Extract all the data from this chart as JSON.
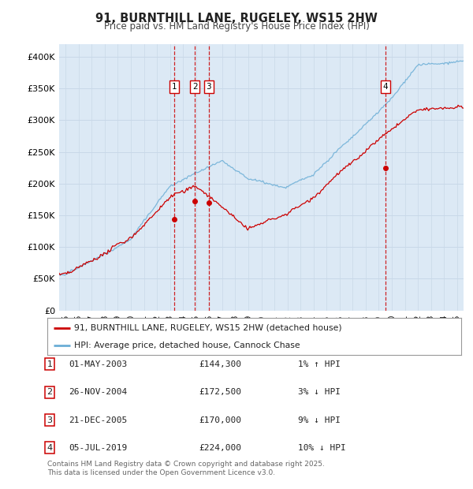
{
  "title": "91, BURNTHILL LANE, RUGELEY, WS15 2HW",
  "subtitle": "Price paid vs. HM Land Registry's House Price Index (HPI)",
  "background_color": "#ffffff",
  "plot_bg_color": "#dce9f5",
  "grid_color_h": "#c8d8e8",
  "grid_color_v": "#c8d8e8",
  "ylim": [
    0,
    420000
  ],
  "yticks": [
    0,
    50000,
    100000,
    150000,
    200000,
    250000,
    300000,
    350000,
    400000
  ],
  "ytick_labels": [
    "£0",
    "£50K",
    "£100K",
    "£150K",
    "£200K",
    "£250K",
    "£300K",
    "£350K",
    "£400K"
  ],
  "hpi_color": "#6baed6",
  "sale_color": "#cc0000",
  "sale_points": [
    {
      "date_num": 2003.33,
      "price": 144300,
      "label": "1"
    },
    {
      "date_num": 2004.9,
      "price": 172500,
      "label": "2"
    },
    {
      "date_num": 2005.97,
      "price": 170000,
      "label": "3"
    },
    {
      "date_num": 2019.51,
      "price": 224000,
      "label": "4"
    }
  ],
  "vline_color": "#cc0000",
  "legend_entries": [
    "91, BURNTHILL LANE, RUGELEY, WS15 2HW (detached house)",
    "HPI: Average price, detached house, Cannock Chase"
  ],
  "table_data": [
    [
      "1",
      "01-MAY-2003",
      "£144,300",
      "1% ↑ HPI"
    ],
    [
      "2",
      "26-NOV-2004",
      "£172,500",
      "3% ↓ HPI"
    ],
    [
      "3",
      "21-DEC-2005",
      "£170,000",
      "9% ↓ HPI"
    ],
    [
      "4",
      "05-JUL-2019",
      "£224,000",
      "10% ↓ HPI"
    ]
  ],
  "footer": "Contains HM Land Registry data © Crown copyright and database right 2025.\nThis data is licensed under the Open Government Licence v3.0.",
  "xmin": 1994.5,
  "xmax": 2025.5
}
